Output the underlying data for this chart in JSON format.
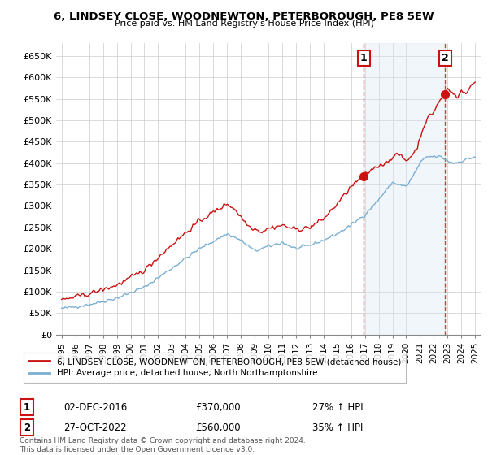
{
  "title": "6, LINDSEY CLOSE, WOODNEWTON, PETERBOROUGH, PE8 5EW",
  "subtitle": "Price paid vs. HM Land Registry's House Price Index (HPI)",
  "ylabel_ticks": [
    "£0",
    "£50K",
    "£100K",
    "£150K",
    "£200K",
    "£250K",
    "£300K",
    "£350K",
    "£400K",
    "£450K",
    "£500K",
    "£550K",
    "£600K",
    "£650K"
  ],
  "ytick_values": [
    0,
    50000,
    100000,
    150000,
    200000,
    250000,
    300000,
    350000,
    400000,
    450000,
    500000,
    550000,
    600000,
    650000
  ],
  "ylim": [
    0,
    680000
  ],
  "hpi_color": "#7bafd4",
  "property_color": "#cc1111",
  "vline_color": "#cc1111",
  "shade_color": "#d8e8f5",
  "bg_color": "#ffffff",
  "grid_color": "#cccccc",
  "legend_label_property": "6, LINDSEY CLOSE, WOODNEWTON, PETERBOROUGH, PE8 5EW (detached house)",
  "legend_label_hpi": "HPI: Average price, detached house, North Northamptonshire",
  "transaction1_date": "02-DEC-2016",
  "transaction1_price": "£370,000",
  "transaction1_change": "27% ↑ HPI",
  "transaction2_date": "27-OCT-2022",
  "transaction2_price": "£560,000",
  "transaction2_change": "35% ↑ HPI",
  "footer": "Contains HM Land Registry data © Crown copyright and database right 2024.\nThis data is licensed under the Open Government Licence v3.0.",
  "x_start_year": 1995,
  "x_end_year": 2025,
  "transaction1_year": 2016.917,
  "transaction2_year": 2022.833
}
